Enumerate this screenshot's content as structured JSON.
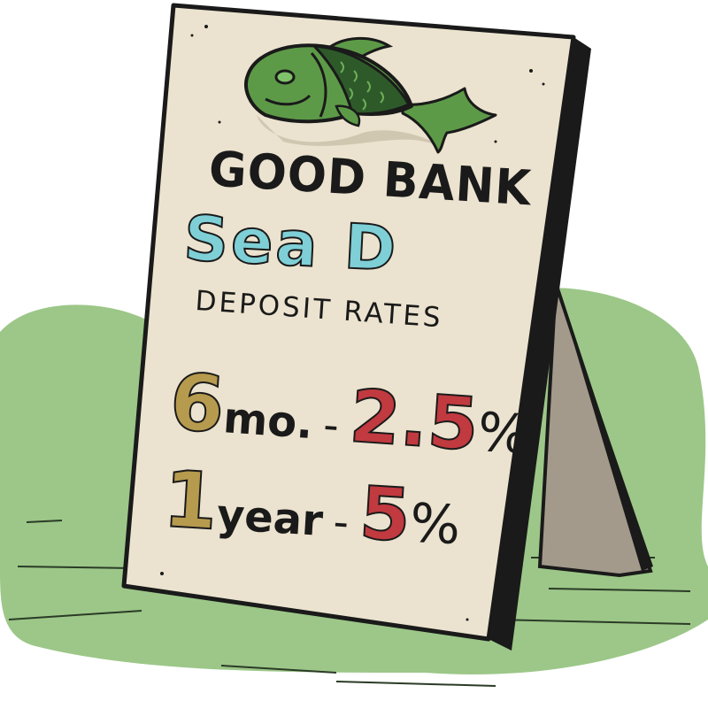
{
  "sign": {
    "title": "GOOD BANK",
    "product_name": "Sea D",
    "subtitle": "DEPOSIT RATES",
    "rates": [
      {
        "term_number": "6",
        "term_unit": "mo.",
        "separator": "-",
        "rate": "2.5",
        "percent_sign": "%"
      },
      {
        "term_number": "1",
        "term_unit": "year",
        "separator": "-",
        "rate": "5",
        "percent_sign": "%"
      }
    ]
  },
  "colors": {
    "background_blob": "#9cc788",
    "sign_face": "#ebe3cf",
    "sign_back": "#a39a8b",
    "fish_body": "#5d9a48",
    "fish_dark": "#2e5a2a",
    "title_text": "#1a1a1a",
    "product_text": "#7ecfd6",
    "term_number": "#b69a4e",
    "rate_value": "#c03a3f"
  },
  "icons": [
    "fish-illustration"
  ]
}
